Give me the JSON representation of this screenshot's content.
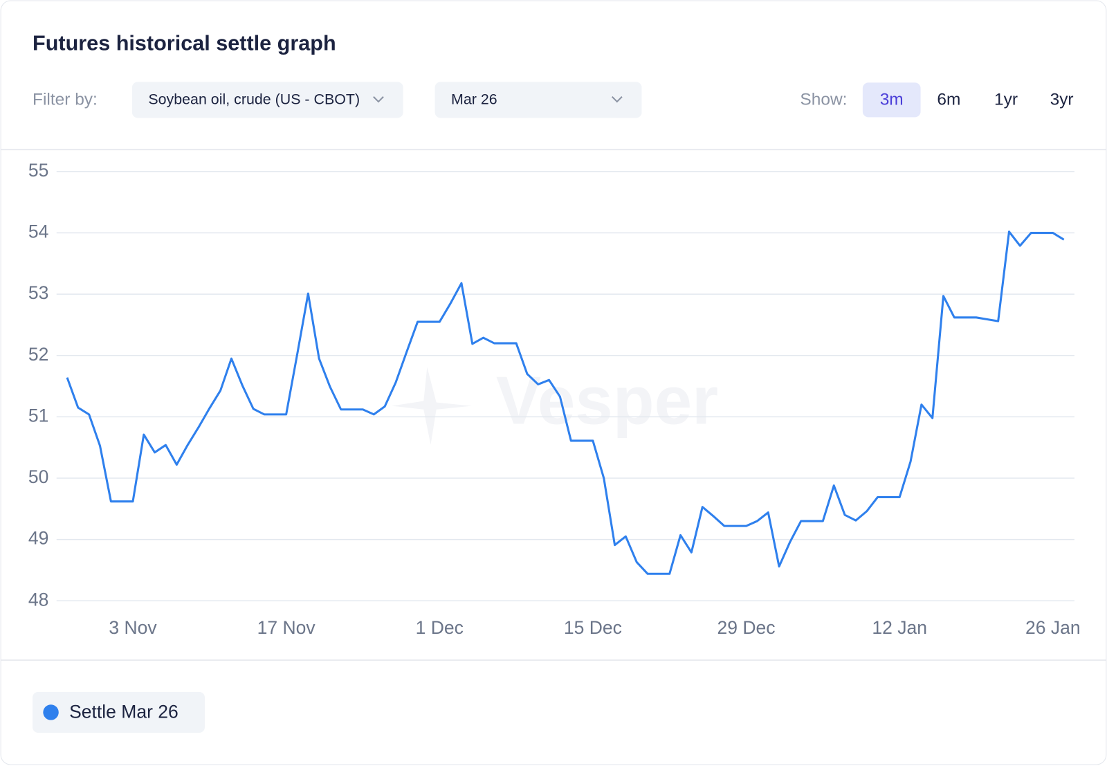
{
  "title": "Futures historical settle graph",
  "filter_label": "Filter by:",
  "filters": [
    "Soybean oil, crude (US - CBOT)",
    "Mar 26"
  ],
  "show_label": "Show:",
  "ranges": [
    "3m",
    "6m",
    "1yr",
    "3yr"
  ],
  "selected_range": "3m",
  "watermark": "Vesper",
  "chart_data": {
    "type": "line",
    "categories": [
      null,
      null,
      null,
      null,
      null,
      null,
      "3 Nov",
      null,
      null,
      null,
      null,
      null,
      null,
      null,
      null,
      null,
      null,
      null,
      null,
      null,
      "17 Nov",
      null,
      null,
      null,
      null,
      null,
      null,
      null,
      null,
      null,
      null,
      null,
      null,
      null,
      "1 Dec",
      null,
      null,
      null,
      null,
      null,
      null,
      null,
      null,
      null,
      null,
      null,
      null,
      null,
      "15 Dec",
      null,
      null,
      null,
      null,
      null,
      null,
      null,
      null,
      null,
      null,
      null,
      null,
      null,
      "29 Dec",
      null,
      null,
      null,
      null,
      null,
      null,
      null,
      null,
      null,
      null,
      null,
      null,
      null,
      "12 Jan",
      null,
      null,
      null,
      null,
      null,
      null,
      null,
      null,
      null,
      null,
      null,
      null,
      null,
      "26 Jan",
      null
    ],
    "series": [
      {
        "name": "Settle Mar 26",
        "color": "#2f80ed",
        "values": [
          51.64,
          51.15,
          51.04,
          50.53,
          49.62,
          49.62,
          49.62,
          50.71,
          50.42,
          50.54,
          50.22,
          50.54,
          50.83,
          51.14,
          51.43,
          51.95,
          51.51,
          51.13,
          51.04,
          51.04,
          51.04,
          52.01,
          53.01,
          51.95,
          51.49,
          51.12,
          51.12,
          51.12,
          51.04,
          51.17,
          51.56,
          52.06,
          52.55,
          52.55,
          52.55,
          52.85,
          53.18,
          52.19,
          52.29,
          52.2,
          52.2,
          52.2,
          51.7,
          51.53,
          51.6,
          51.33,
          50.61,
          50.61,
          50.61,
          50.0,
          48.91,
          49.05,
          48.63,
          48.44,
          48.44,
          48.44,
          49.07,
          48.79,
          49.53,
          49.38,
          49.22,
          49.22,
          49.22,
          49.3,
          49.44,
          48.56,
          48.96,
          49.3,
          49.3,
          49.3,
          49.88,
          49.4,
          49.31,
          49.46,
          49.69,
          49.69,
          49.69,
          50.27,
          51.2,
          50.98,
          52.97,
          52.62,
          52.62,
          52.62,
          52.59,
          52.56,
          54.02,
          53.79,
          54.0,
          54.0,
          54.0,
          53.89
        ]
      }
    ],
    "ylim": [
      48,
      55
    ],
    "yticks": [
      48,
      49,
      50,
      51,
      52,
      53,
      54,
      55
    ],
    "grid": true
  }
}
